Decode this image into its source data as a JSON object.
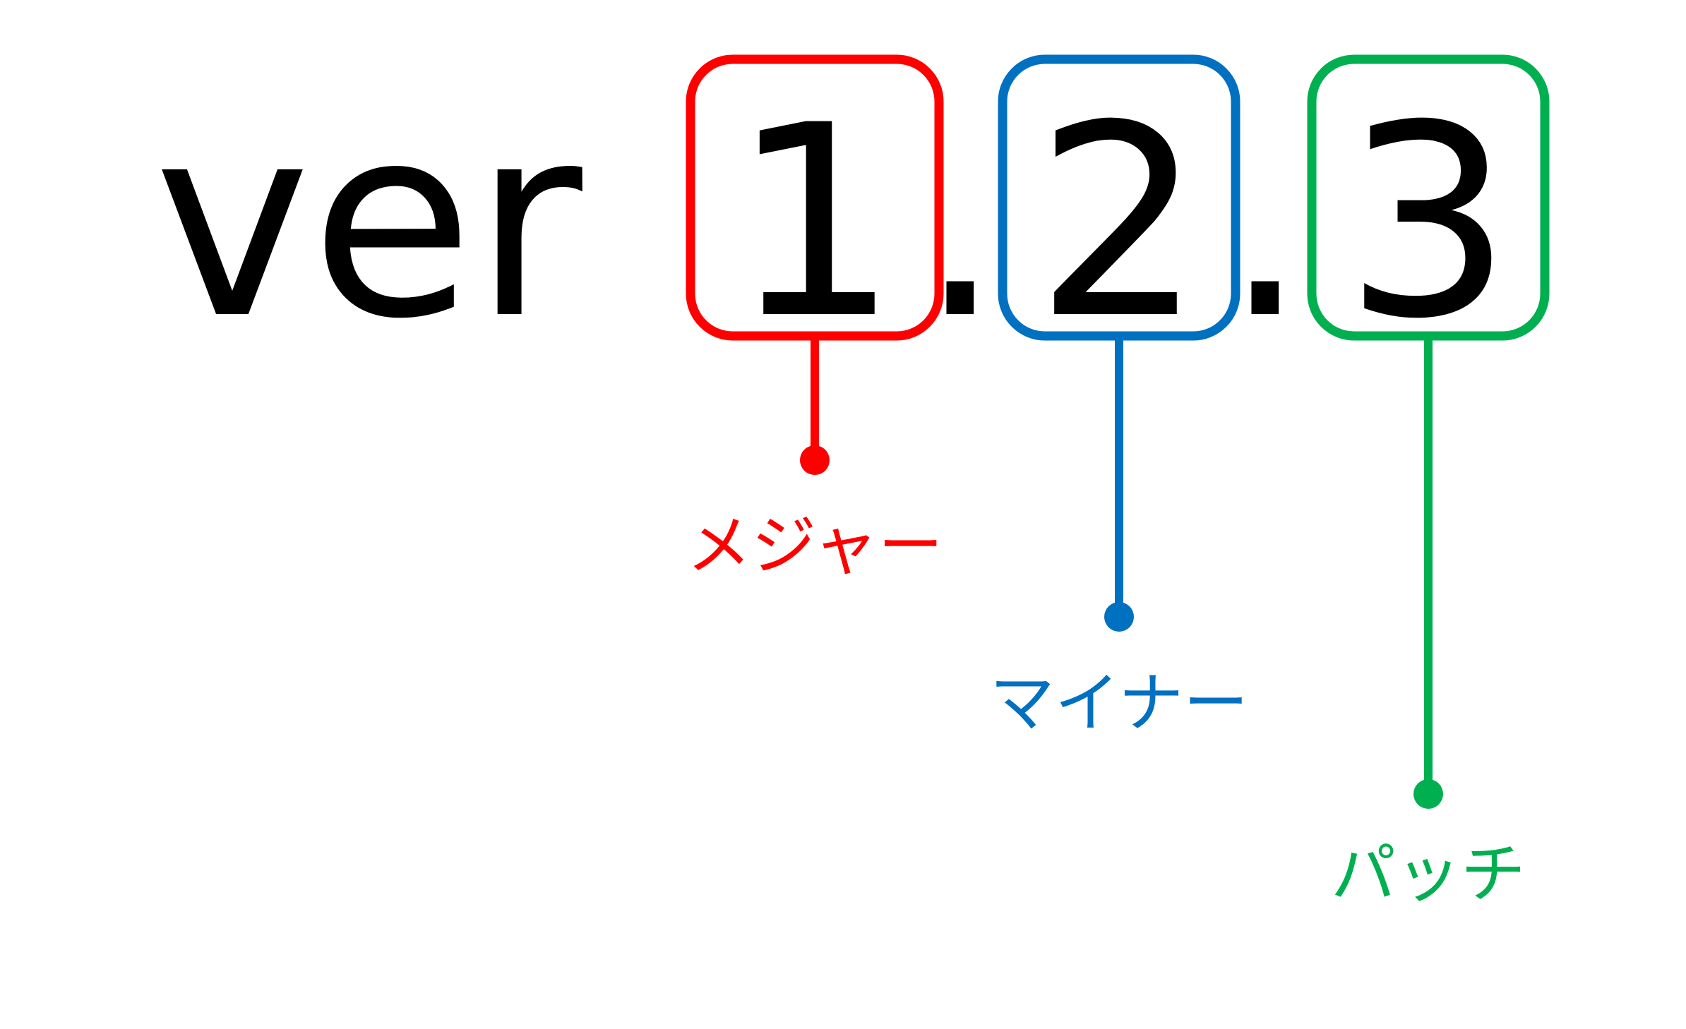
{
  "prefix": "ver",
  "separator": ".",
  "parts": [
    {
      "key": "major",
      "digit": "1",
      "label": "メジャー",
      "color": "#ff0000"
    },
    {
      "key": "minor",
      "digit": "2",
      "label": "マイナー",
      "color": "#0070c0"
    },
    {
      "key": "patch",
      "digit": "3",
      "label": "パッチ",
      "color": "#00b050"
    }
  ]
}
